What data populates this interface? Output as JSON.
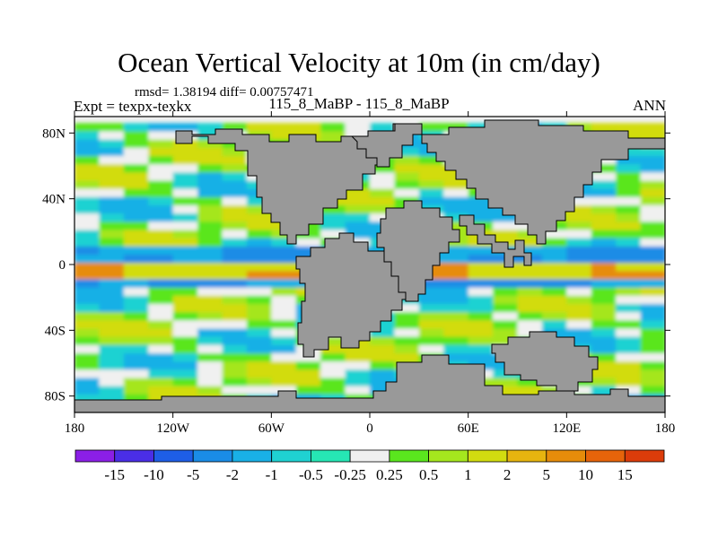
{
  "chart_data": {
    "type": "heatmap",
    "title": "Ocean Vertical Velocity at 10m (in cm/day)",
    "stats_text": "rmsd= 1.38194 diff= 0.00757471",
    "left_label": "Expt = texpx-texkx",
    "center_label": "115_8_MaBP - 115_8_MaBP",
    "right_label": "ANN",
    "xlim": [
      -180,
      180
    ],
    "ylim": [
      -90,
      90
    ],
    "x_ticks": [
      {
        "value": -180,
        "label": "180"
      },
      {
        "value": -120,
        "label": "120W"
      },
      {
        "value": -60,
        "label": "60W"
      },
      {
        "value": 0,
        "label": "0"
      },
      {
        "value": 60,
        "label": "60E"
      },
      {
        "value": 120,
        "label": "120E"
      },
      {
        "value": 180,
        "label": "180"
      }
    ],
    "y_ticks": [
      {
        "value": 80,
        "label": "80N"
      },
      {
        "value": 40,
        "label": "40N"
      },
      {
        "value": 0,
        "label": "0"
      },
      {
        "value": -40,
        "label": "40S"
      },
      {
        "value": -80,
        "label": "80S"
      }
    ],
    "colorbar": {
      "levels": [
        "-15",
        "-10",
        "-5",
        "-2",
        "-1",
        "-0.5",
        "-0.25",
        "0.25",
        "0.5",
        "1",
        "2",
        "5",
        "10",
        "15"
      ],
      "colors": [
        "#8b1fe6",
        "#4a2ee6",
        "#1e5ee6",
        "#1a8ce6",
        "#19b0e6",
        "#1fd2d2",
        "#26e6b4",
        "#f0f0f0",
        "#5ae61e",
        "#a5e61e",
        "#d2dc10",
        "#e6b40f",
        "#e68c0a",
        "#e6640a",
        "#dc3c0a"
      ]
    },
    "land_color": "#999999"
  }
}
